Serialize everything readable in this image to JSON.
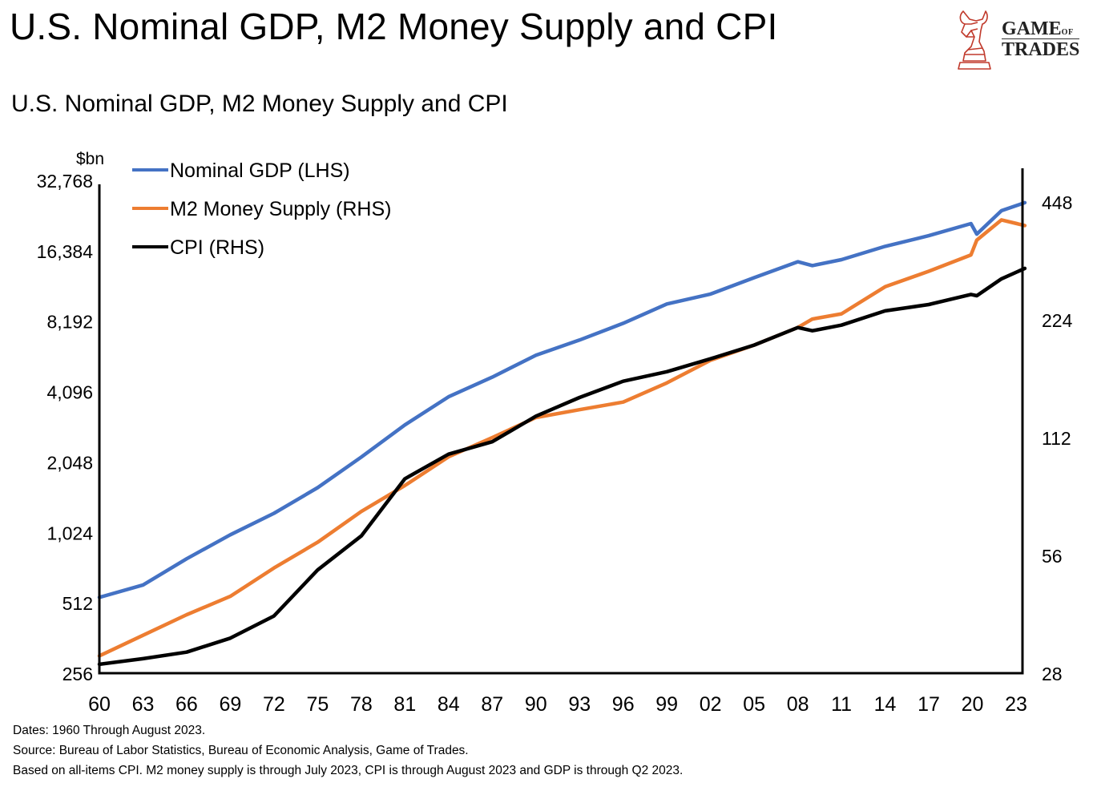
{
  "page": {
    "title": "U.S. Nominal GDP, M2 Money Supply and CPI",
    "logo": {
      "name": "Game of Trades",
      "line1_big": "GAME",
      "line1_small": "OF",
      "line2": "TRADES"
    },
    "footnotes": [
      "Dates: 1960 Through August 2023.",
      "Source: Bureau of Labor Statistics, Bureau of Economic Analysis, Game of Trades.",
      "Based on all-items CPI. M2 money supply is through July 2023, CPI is through August 2023 and GDP is through Q2 2023."
    ]
  },
  "chart_data": {
    "type": "line",
    "title": "U.S. Nominal GDP, M2 Money Supply and CPI",
    "left_axis": {
      "label": "$bn",
      "scale": "log2",
      "range": [
        256,
        32768
      ],
      "ticks": [
        256,
        512,
        1024,
        2048,
        4096,
        8192,
        16384,
        32768
      ],
      "tick_labels": [
        "256",
        "512",
        "1,024",
        "2,048",
        "4,096",
        "8,192",
        "16,384",
        "32,768"
      ]
    },
    "right_axis": {
      "label": "",
      "scale": "log2",
      "range": [
        28,
        448
      ],
      "ticks": [
        28,
        56,
        112,
        224,
        448
      ],
      "tick_labels": [
        "28",
        "56",
        "112",
        "224",
        "448"
      ]
    },
    "x_axis": {
      "range": [
        1960,
        2023.7
      ],
      "ticks": [
        1960,
        1963,
        1966,
        1969,
        1972,
        1975,
        1978,
        1981,
        1984,
        1987,
        1990,
        1993,
        1996,
        1999,
        2002,
        2005,
        2008,
        2011,
        2014,
        2017,
        2020,
        2023
      ],
      "tick_labels": [
        "60",
        "63",
        "66",
        "69",
        "72",
        "75",
        "78",
        "81",
        "84",
        "87",
        "90",
        "93",
        "96",
        "99",
        "02",
        "05",
        "08",
        "11",
        "14",
        "17",
        "20",
        "23"
      ]
    },
    "grid": false,
    "legend": {
      "placement": "top-left"
    },
    "x": [
      1960,
      1963,
      1966,
      1969,
      1972,
      1975,
      1978,
      1981,
      1984,
      1987,
      1990,
      1993,
      1996,
      1999,
      2002,
      2005,
      2008,
      2009,
      2011,
      2014,
      2017,
      2019.9,
      2020.3,
      2022,
      2023.6
    ],
    "series": [
      {
        "name": "Nominal GDP (LHS)",
        "axis": "left",
        "color": "#4472C4",
        "values": [
          540,
          610,
          790,
          1000,
          1235,
          1590,
          2150,
          2950,
          3890,
          4720,
          5860,
          6800,
          8020,
          9700,
          10700,
          12560,
          14700,
          14150,
          15000,
          17100,
          19000,
          21400,
          19300,
          24300,
          26300
        ]
      },
      {
        "name": "M2 Money Supply (RHS)",
        "axis": "right",
        "color": "#ED7D31",
        "values": [
          31,
          35,
          39.5,
          44,
          52,
          60.5,
          72.5,
          84.5,
          100,
          112,
          126,
          132,
          138,
          154.5,
          176.5,
          193,
          214,
          225,
          232,
          272,
          298,
          328,
          358,
          403,
          390
        ]
      },
      {
        "name": "CPI (RHS)",
        "axis": "right",
        "color": "#000000",
        "values": [
          29.5,
          30.5,
          31.7,
          34.4,
          39.2,
          51.4,
          62.8,
          87.9,
          101.6,
          109.3,
          127,
          141.8,
          156,
          165,
          178,
          193,
          214,
          210,
          217,
          236,
          245,
          260,
          258,
          285,
          303
        ]
      }
    ]
  }
}
